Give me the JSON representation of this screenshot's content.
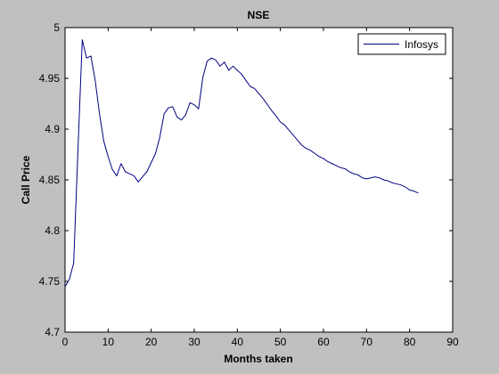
{
  "chart_data": {
    "type": "line",
    "title": "NSE",
    "xlabel": "Months taken",
    "ylabel": "Call Price",
    "xlim": [
      0,
      90
    ],
    "ylim": [
      4.7,
      5.0
    ],
    "xticks": [
      "0",
      "10",
      "20",
      "30",
      "40",
      "50",
      "60",
      "70",
      "80",
      "90"
    ],
    "yticks": [
      "4.7",
      "4.75",
      "4.8",
      "4.85",
      "4.9",
      "4.95",
      "5"
    ],
    "grid": false,
    "legend_position": "top-right",
    "series": [
      {
        "name": "Infosys",
        "color": "#00007f",
        "x": [
          0,
          1,
          2,
          3,
          4,
          5,
          6,
          7,
          8,
          9,
          10,
          11,
          12,
          13,
          14,
          15,
          16,
          17,
          18,
          19,
          20,
          21,
          22,
          23,
          24,
          25,
          26,
          27,
          28,
          29,
          30,
          31,
          32,
          33,
          34,
          35,
          36,
          37,
          38,
          39,
          40,
          41,
          42,
          43,
          44,
          45,
          46,
          47,
          48,
          49,
          50,
          51,
          52,
          53,
          54,
          55,
          56,
          57,
          58,
          59,
          60,
          61,
          62,
          63,
          64,
          65,
          66,
          67,
          68,
          69,
          70,
          71,
          72,
          73,
          74,
          75,
          76,
          77,
          78,
          79,
          80,
          81,
          82
        ],
        "y": [
          4.745,
          4.752,
          4.768,
          4.88,
          4.988,
          4.97,
          4.972,
          4.948,
          4.915,
          4.888,
          4.873,
          4.86,
          4.854,
          4.866,
          4.858,
          4.856,
          4.854,
          4.848,
          4.853,
          4.858,
          4.867,
          4.876,
          4.892,
          4.915,
          4.921,
          4.922,
          4.912,
          4.909,
          4.914,
          4.926,
          4.924,
          4.92,
          4.951,
          4.967,
          4.97,
          4.968,
          4.962,
          4.966,
          4.958,
          4.962,
          4.958,
          4.954,
          4.948,
          4.942,
          4.94,
          4.935,
          4.93,
          4.924,
          4.918,
          4.913,
          4.907,
          4.904,
          4.899,
          4.894,
          4.889,
          4.884,
          4.881,
          4.879,
          4.876,
          4.873,
          4.871,
          4.868,
          4.866,
          4.864,
          4.862,
          4.861,
          4.858,
          4.856,
          4.855,
          4.852,
          4.851,
          4.852,
          4.853,
          4.852,
          4.85,
          4.849,
          4.847,
          4.846,
          4.845,
          4.843,
          4.84,
          4.839,
          4.837
        ]
      }
    ]
  }
}
